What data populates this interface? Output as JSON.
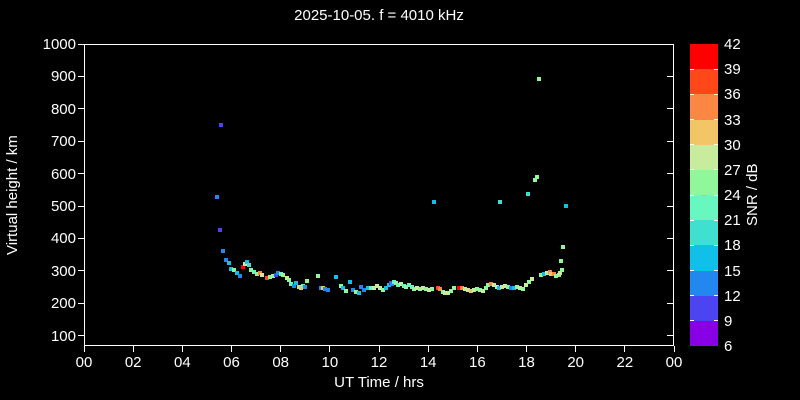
{
  "colors": {
    "background": "#000000",
    "frame": "#ffffff",
    "text": "#ffffff"
  },
  "chart_data": {
    "type": "scatter",
    "title": "2025-10-05. f = 4010 kHz",
    "xlabel": "UT Time / hrs",
    "ylabel": "Virtual height / km",
    "colorbar_label": "SNR / dB",
    "xlim": [
      0,
      24
    ],
    "ylim": [
      68,
      1000
    ],
    "grid": false,
    "legend_position": "right-colorbar",
    "x_tick_labels": [
      "00",
      "02",
      "04",
      "06",
      "08",
      "10",
      "12",
      "14",
      "16",
      "18",
      "20",
      "22",
      "00"
    ],
    "x_tick_hours": [
      0,
      2,
      4,
      6,
      8,
      10,
      12,
      14,
      16,
      18,
      20,
      22,
      24
    ],
    "y_ticks": [
      100,
      200,
      300,
      400,
      500,
      600,
      700,
      800,
      900,
      1000
    ],
    "colorbar": {
      "tick_values_top_to_bottom": [
        42,
        39,
        36,
        33,
        30,
        27,
        24,
        21,
        18,
        15,
        12,
        9,
        6
      ],
      "bin_edges": [
        6,
        9,
        12,
        15,
        18,
        21,
        24,
        27,
        30,
        33,
        36,
        39,
        42
      ],
      "bin_colors_low_to_high": [
        "#8800e5",
        "#4b44f0",
        "#2288f0",
        "#10c0e8",
        "#40e0d0",
        "#66f8c0",
        "#90f89a",
        "#c8ec9e",
        "#f2c567",
        "#fa8743",
        "#ff4719",
        "#ff0000"
      ]
    },
    "point_format": [
      "ut_hours",
      "virtual_height_km",
      "snr_db"
    ],
    "points": [
      [
        5.37,
        531,
        13
      ],
      [
        5.49,
        429,
        10
      ],
      [
        5.53,
        753,
        10
      ],
      [
        5.61,
        363,
        13
      ],
      [
        5.74,
        336,
        13
      ],
      [
        5.86,
        327,
        16
      ],
      [
        5.94,
        308,
        16
      ],
      [
        6.06,
        305,
        25
      ],
      [
        6.18,
        296,
        16
      ],
      [
        6.31,
        286,
        13
      ],
      [
        6.43,
        314,
        40
      ],
      [
        6.51,
        323,
        28
      ],
      [
        6.59,
        329,
        16
      ],
      [
        6.67,
        320,
        19
      ],
      [
        6.75,
        305,
        25
      ],
      [
        6.88,
        299,
        22
      ],
      [
        7.0,
        292,
        25
      ],
      [
        7.12,
        295,
        34
      ],
      [
        7.2,
        289,
        28
      ],
      [
        7.4,
        280,
        37
      ],
      [
        7.53,
        283,
        25
      ],
      [
        7.65,
        286,
        25
      ],
      [
        7.77,
        289,
        10
      ],
      [
        7.85,
        295,
        13
      ],
      [
        7.97,
        292,
        22
      ],
      [
        8.05,
        289,
        25
      ],
      [
        8.22,
        280,
        28
      ],
      [
        8.3,
        274,
        25
      ],
      [
        8.38,
        262,
        22
      ],
      [
        8.5,
        256,
        13
      ],
      [
        8.58,
        265,
        16
      ],
      [
        8.71,
        252,
        25
      ],
      [
        8.79,
        249,
        31
      ],
      [
        8.87,
        256,
        22
      ],
      [
        8.95,
        252,
        13
      ],
      [
        9.03,
        271,
        25
      ],
      [
        9.48,
        286,
        25
      ],
      [
        9.6,
        249,
        13
      ],
      [
        9.68,
        249,
        31
      ],
      [
        9.76,
        246,
        13
      ],
      [
        9.88,
        243,
        13
      ],
      [
        10.21,
        283,
        16
      ],
      [
        10.41,
        256,
        25
      ],
      [
        10.49,
        249,
        16
      ],
      [
        10.62,
        240,
        25
      ],
      [
        10.78,
        268,
        16
      ],
      [
        10.9,
        243,
        13
      ],
      [
        11.02,
        237,
        25
      ],
      [
        11.15,
        234,
        16
      ],
      [
        11.23,
        252,
        13
      ],
      [
        11.35,
        243,
        13
      ],
      [
        11.51,
        249,
        16
      ],
      [
        11.63,
        249,
        22
      ],
      [
        11.76,
        249,
        28
      ],
      [
        11.88,
        256,
        28
      ],
      [
        12.0,
        249,
        28
      ],
      [
        12.12,
        243,
        25
      ],
      [
        12.24,
        249,
        16
      ],
      [
        12.37,
        259,
        16
      ],
      [
        12.45,
        264,
        10
      ],
      [
        12.49,
        262,
        13
      ],
      [
        12.57,
        268,
        22
      ],
      [
        12.65,
        264,
        25
      ],
      [
        12.73,
        259,
        22
      ],
      [
        12.85,
        262,
        28
      ],
      [
        12.98,
        256,
        22
      ],
      [
        13.06,
        252,
        25
      ],
      [
        13.18,
        259,
        22
      ],
      [
        13.3,
        252,
        22
      ],
      [
        13.38,
        246,
        25
      ],
      [
        13.51,
        249,
        28
      ],
      [
        13.63,
        246,
        25
      ],
      [
        13.75,
        249,
        28
      ],
      [
        13.87,
        246,
        25
      ],
      [
        13.99,
        243,
        28
      ],
      [
        14.12,
        246,
        25
      ],
      [
        14.2,
        516,
        16
      ],
      [
        14.36,
        249,
        37
      ],
      [
        14.44,
        246,
        34
      ],
      [
        14.56,
        237,
        25
      ],
      [
        14.64,
        234,
        28
      ],
      [
        14.77,
        234,
        28
      ],
      [
        14.89,
        240,
        25
      ],
      [
        15.01,
        249,
        25
      ],
      [
        15.21,
        249,
        40
      ],
      [
        15.34,
        249,
        34
      ],
      [
        15.46,
        246,
        28
      ],
      [
        15.58,
        243,
        28
      ],
      [
        15.7,
        240,
        31
      ],
      [
        15.83,
        243,
        28
      ],
      [
        15.95,
        246,
        25
      ],
      [
        16.07,
        243,
        25
      ],
      [
        16.19,
        240,
        28
      ],
      [
        16.31,
        249,
        25
      ],
      [
        16.4,
        259,
        25
      ],
      [
        16.52,
        262,
        34
      ],
      [
        16.64,
        259,
        28
      ],
      [
        16.76,
        252,
        28
      ],
      [
        16.84,
        249,
        16
      ],
      [
        16.88,
        514,
        19
      ],
      [
        16.96,
        252,
        28
      ],
      [
        17.09,
        256,
        28
      ],
      [
        17.21,
        252,
        25
      ],
      [
        17.33,
        249,
        13
      ],
      [
        17.45,
        249,
        16
      ],
      [
        17.57,
        252,
        25
      ],
      [
        17.7,
        249,
        28
      ],
      [
        17.82,
        246,
        25
      ],
      [
        17.94,
        259,
        28
      ],
      [
        18.02,
        540,
        19
      ],
      [
        18.06,
        268,
        25
      ],
      [
        18.18,
        277,
        28
      ],
      [
        18.31,
        583,
        25
      ],
      [
        18.39,
        593,
        25
      ],
      [
        18.47,
        895,
        25
      ],
      [
        18.55,
        289,
        25
      ],
      [
        18.67,
        292,
        16
      ],
      [
        18.79,
        295,
        28
      ],
      [
        18.92,
        299,
        34
      ],
      [
        18.96,
        292,
        31
      ],
      [
        19.08,
        292,
        34
      ],
      [
        19.16,
        286,
        25
      ],
      [
        19.28,
        289,
        25
      ],
      [
        19.32,
        296,
        28
      ],
      [
        19.37,
        332,
        25
      ],
      [
        19.4,
        305,
        25
      ],
      [
        19.45,
        376,
        25
      ],
      [
        19.57,
        502,
        16
      ]
    ]
  }
}
